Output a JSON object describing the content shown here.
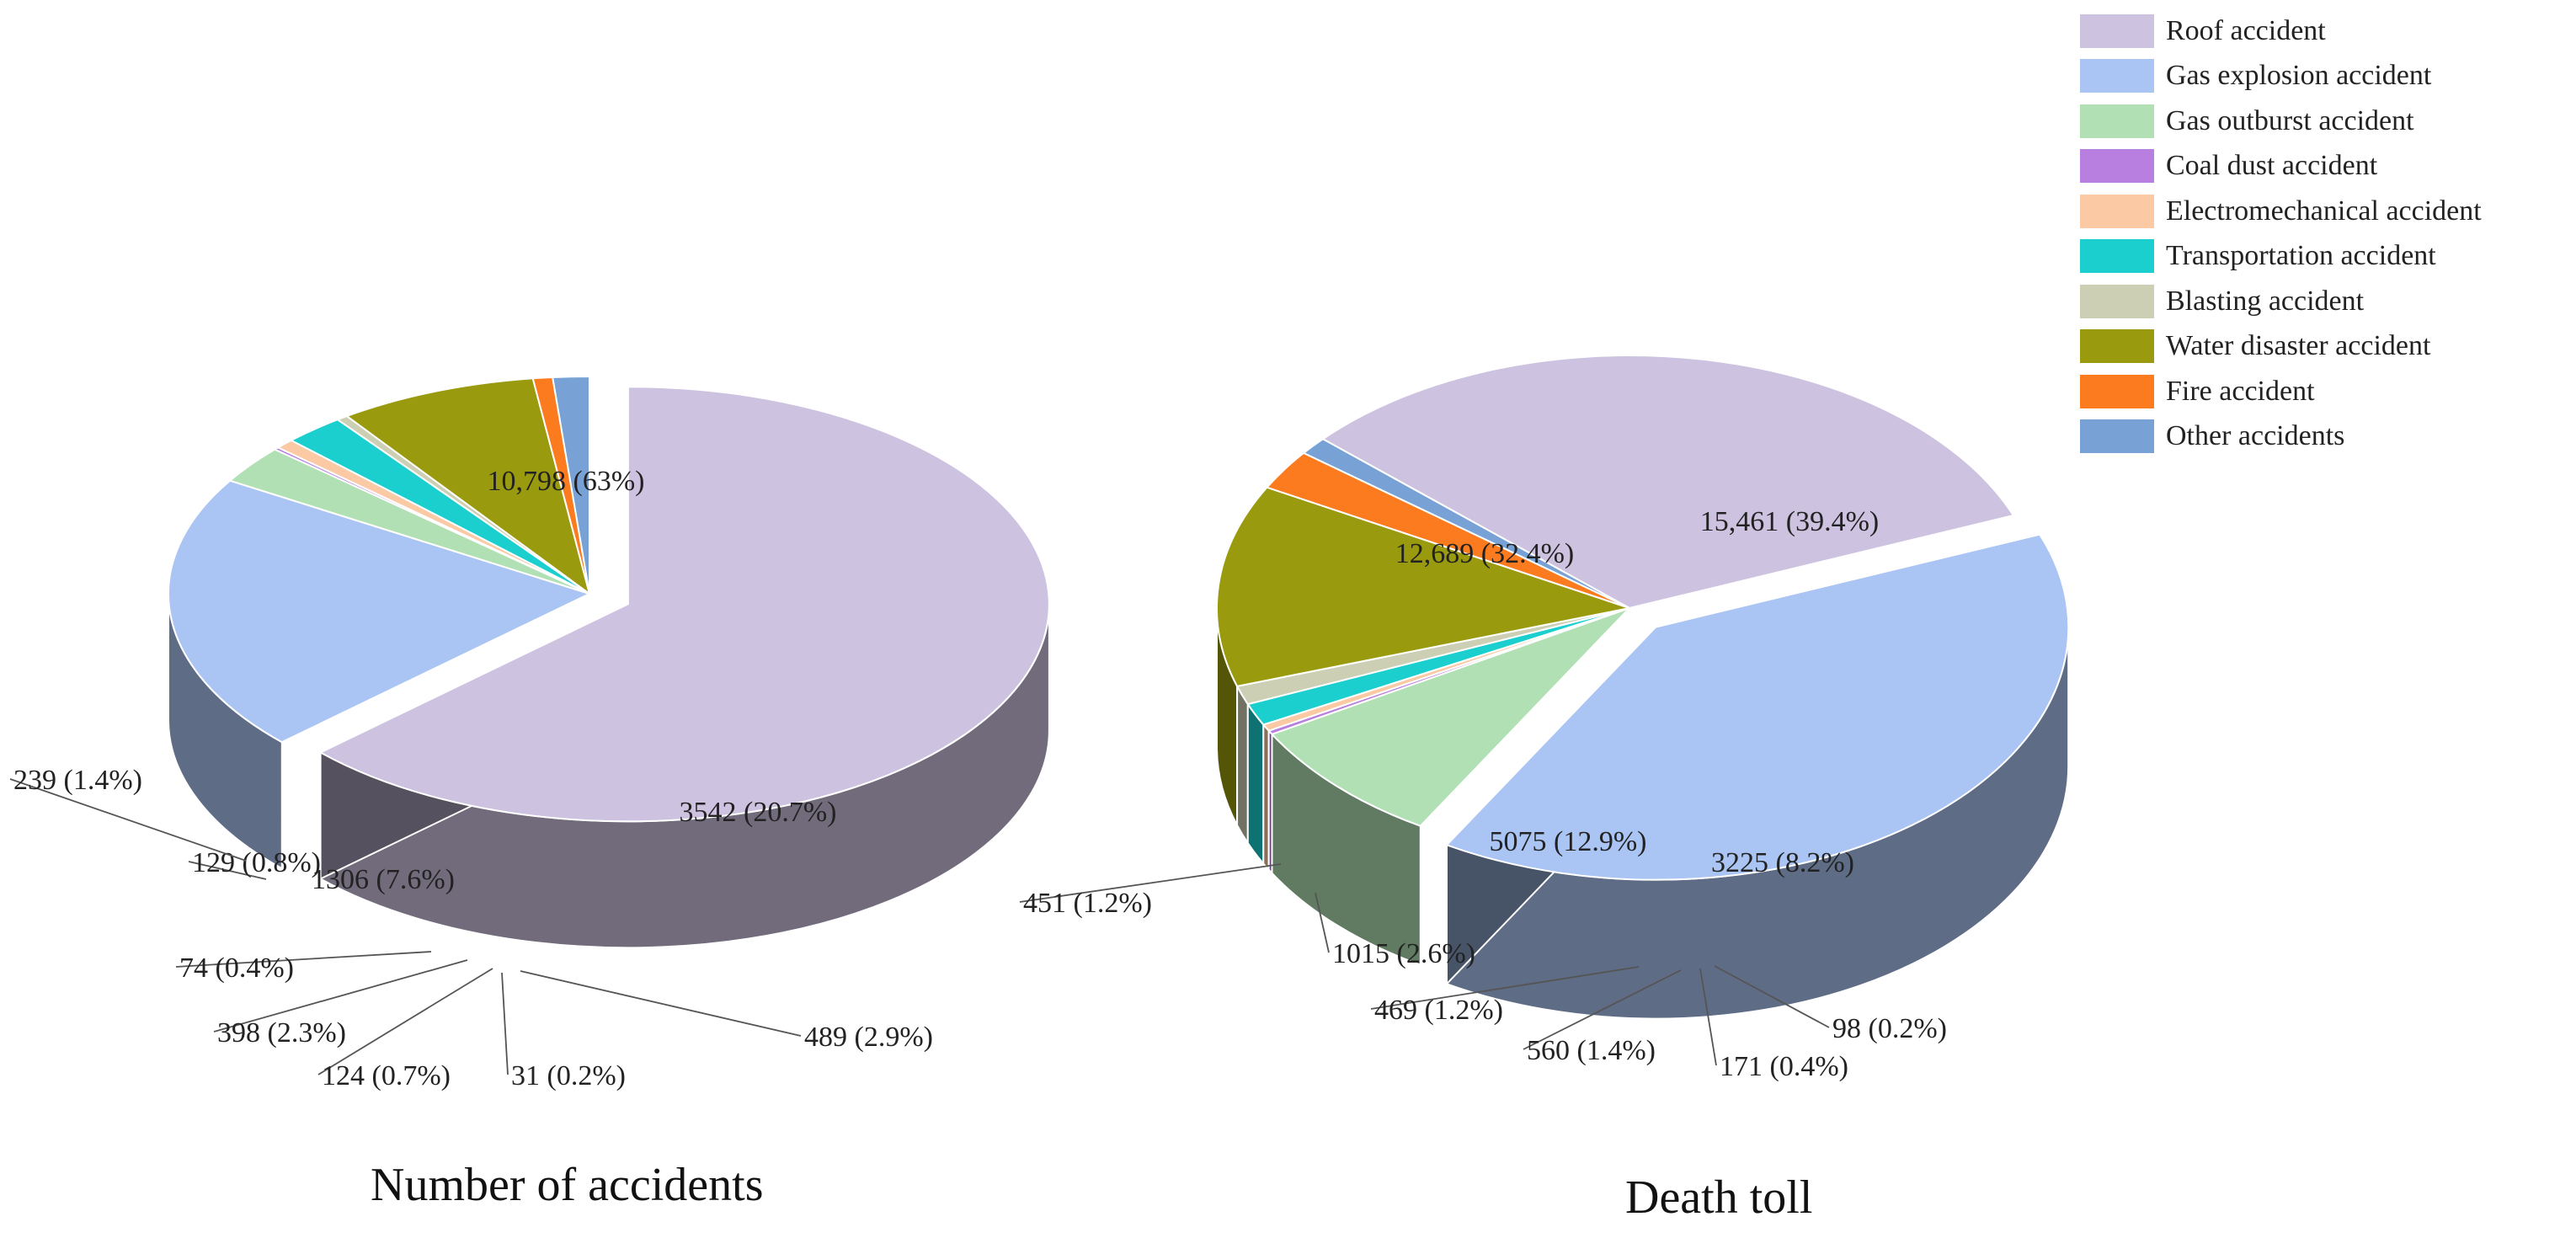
{
  "chart_data": [
    {
      "type": "pie",
      "title": "Number of accidents",
      "categories": [
        "Roof accident",
        "Gas explosion accident",
        "Gas outburst accident",
        "Coal dust accident",
        "Electromechanical accident",
        "Transportation accident",
        "Blasting accident",
        "Water disaster accident",
        "Fire accident",
        "Other accidents"
      ],
      "values": [
        10798,
        3542,
        489,
        31,
        124,
        398,
        74,
        1306,
        129,
        239
      ],
      "percents": [
        63,
        20.7,
        2.9,
        0.2,
        0.7,
        2.3,
        0.4,
        7.6,
        0.8,
        1.4
      ],
      "labels": [
        "10,798 (63%)",
        "3542 (20.7%)",
        "489 (2.9%)",
        "31 (0.2%)",
        "124 (0.7%)",
        "398 (2.3%)",
        "74 (0.4%)",
        "1306 (7.6%)",
        "129 (0.8%)",
        "239 (1.4%)"
      ],
      "exploded": [
        true,
        false,
        false,
        false,
        false,
        false,
        false,
        false,
        false,
        false
      ]
    },
    {
      "type": "pie",
      "title": "Death toll",
      "categories": [
        "Roof accident",
        "Gas explosion accident",
        "Gas outburst accident",
        "Coal dust accident",
        "Electromechanical accident",
        "Transportation accident",
        "Blasting accident",
        "Water disaster accident",
        "Fire accident",
        "Other accidents"
      ],
      "values": [
        12689,
        15461,
        3225,
        98,
        171,
        560,
        469,
        5075,
        1015,
        451
      ],
      "percents": [
        32.4,
        39.4,
        8.2,
        0.2,
        0.4,
        1.4,
        1.2,
        12.9,
        2.6,
        1.2
      ],
      "labels": [
        "12,689 (32.4%)",
        "15,461 (39.4%)",
        "3225 (8.2%)",
        "98 (0.2%)",
        "171 (0.4%)",
        "560 (1.4%)",
        "469 (1.2%)",
        "5075 (12.9%)",
        "1015 (2.6%)",
        "451 (1.2%)"
      ],
      "exploded": [
        false,
        true,
        false,
        false,
        false,
        false,
        false,
        false,
        false,
        false
      ]
    }
  ],
  "legend": {
    "items": [
      "Roof accident",
      "Gas explosion accident",
      "Gas outburst accident",
      "Coal dust accident",
      "Electromechanical accident",
      "Transportation accident",
      "Blasting accident",
      "Water disaster accident",
      "Fire accident",
      "Other accidents"
    ],
    "colors": [
      "#cdc2e0",
      "#aac5f3",
      "#b1e0b4",
      "#b87ee0",
      "#fbc9a3",
      "#1ccfcf",
      "#cdcfb4",
      "#9a9a0e",
      "#fb7b1e",
      "#78a2d6"
    ]
  }
}
